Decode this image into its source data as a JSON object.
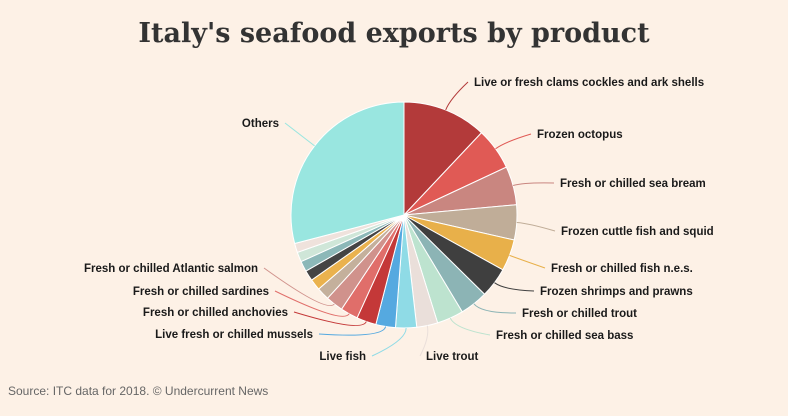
{
  "chart_data": {
    "type": "pie",
    "title": "Italy's seafood exports by product",
    "start_angle_deg": 0,
    "direction": "clockwise",
    "slices": [
      {
        "label": "Live or fresh clams cockles and ark shells",
        "value": 12.0,
        "color": "#b33a3a"
      },
      {
        "label": "Frozen octopus",
        "value": 6.0,
        "color": "#e05a55"
      },
      {
        "label": "Fresh or chilled sea bream",
        "value": 5.5,
        "color": "#c98680"
      },
      {
        "label": "Frozen cuttle fish and squid",
        "value": 5.0,
        "color": "#c0ad98"
      },
      {
        "label": "Fresh or chilled fish n.e.s.",
        "value": 4.5,
        "color": "#e8b04a"
      },
      {
        "label": "Frozen shrimps and prawns",
        "value": 4.3,
        "color": "#3f3f3f"
      },
      {
        "label": "Fresh or chilled trout",
        "value": 4.0,
        "color": "#8cb4b5"
      },
      {
        "label": "Fresh or chilled sea bass",
        "value": 3.8,
        "color": "#bde3cf"
      },
      {
        "label": "Live trout",
        "value": 3.0,
        "color": "#eadfda"
      },
      {
        "label": "Live fish",
        "value": 3.0,
        "color": "#8fdbe6"
      },
      {
        "label": "Live fresh or chilled mussels",
        "value": 2.8,
        "color": "#55a9e0"
      },
      {
        "label": "Fresh or chilled anchovies",
        "value": 2.8,
        "color": "#c43838"
      },
      {
        "label": "Fresh or chilled sardines",
        "value": 2.5,
        "color": "#e06e6a"
      },
      {
        "label": "Fresh or chilled Atlantic salmon",
        "value": 2.5,
        "color": "#d0928c"
      },
      {
        "label": "",
        "value": 1.8,
        "color": "#c4b09c"
      },
      {
        "label": "",
        "value": 1.6,
        "color": "#eab24e"
      },
      {
        "label": "",
        "value": 1.5,
        "color": "#444444"
      },
      {
        "label": "",
        "value": 1.5,
        "color": "#8cb8b8"
      },
      {
        "label": "",
        "value": 1.4,
        "color": "#cfe6d8"
      },
      {
        "label": "",
        "value": 1.3,
        "color": "#efe2dc"
      },
      {
        "label": "Others",
        "value": 29.0,
        "color": "#99e6e0"
      }
    ]
  },
  "source": "Source: ITC data for 2018. © Undercurrent News"
}
